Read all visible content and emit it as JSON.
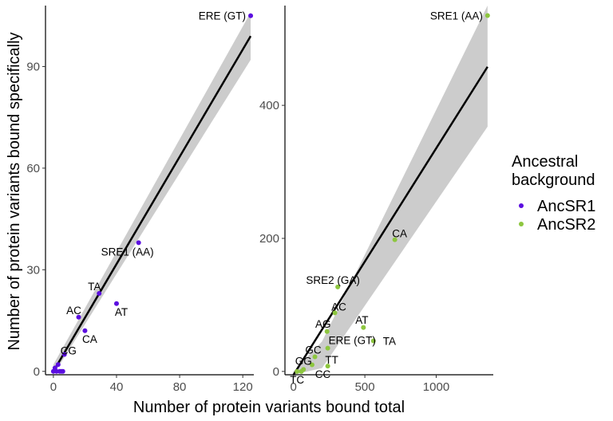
{
  "figure": {
    "x_axis_title": "Number of protein variants bound total",
    "y_axis_title": "Number of protein variants bound specifically"
  },
  "legend": {
    "title_line1": "Ancestral",
    "title_line2": "background",
    "items": [
      {
        "label": "AncSR1",
        "color": "#5b0ee0"
      },
      {
        "label": "AncSR2",
        "color": "#8dc63f"
      }
    ]
  },
  "chart_data": [
    {
      "type": "scatter",
      "series": "AncSR1",
      "color": "#5b0ee0",
      "xlim": [
        -5,
        127
      ],
      "ylim": [
        -1,
        108
      ],
      "xticks": [
        0,
        40,
        80,
        120
      ],
      "yticks": [
        0,
        30,
        60,
        90
      ],
      "grid": false,
      "points": [
        {
          "x": 125,
          "y": 105,
          "label": "ERE (GT)"
        },
        {
          "x": 54,
          "y": 38,
          "label": "SRE1 (AA)"
        },
        {
          "x": 40,
          "y": 20,
          "label": "AT"
        },
        {
          "x": 29,
          "y": 23,
          "label": "TA"
        },
        {
          "x": 16,
          "y": 16,
          "label": "AC"
        },
        {
          "x": 20,
          "y": 12,
          "label": "CA"
        },
        {
          "x": 7,
          "y": 5,
          "label": "CG"
        },
        {
          "x": 3,
          "y": 2,
          "label": ""
        },
        {
          "x": 1,
          "y": 1,
          "label": ""
        },
        {
          "x": 0,
          "y": 0,
          "label": ""
        },
        {
          "x": 2,
          "y": 0,
          "label": ""
        },
        {
          "x": 4,
          "y": 0,
          "label": ""
        },
        {
          "x": 5,
          "y": 0,
          "label": ""
        },
        {
          "x": 6,
          "y": 0,
          "label": ""
        }
      ],
      "fit": {
        "x": [
          0,
          125
        ],
        "y": [
          0,
          99
        ]
      },
      "ci": {
        "x": [
          0,
          125
        ],
        "lower": [
          -2,
          92
        ],
        "upper": [
          2,
          106
        ]
      }
    },
    {
      "type": "scatter",
      "series": "AncSR2",
      "color": "#8dc63f",
      "xlim": [
        -60,
        1400
      ],
      "ylim": [
        -5,
        550
      ],
      "xticks": [
        0,
        500,
        1000
      ],
      "yticks": [
        0,
        200,
        400
      ],
      "grid": false,
      "points": [
        {
          "x": 1360,
          "y": 535,
          "label": "SRE1 (AA)"
        },
        {
          "x": 710,
          "y": 198,
          "label": "CA"
        },
        {
          "x": 310,
          "y": 127,
          "label": "SRE2 (GA)"
        },
        {
          "x": 290,
          "y": 88,
          "label": "AC"
        },
        {
          "x": 235,
          "y": 60,
          "label": "AG"
        },
        {
          "x": 490,
          "y": 66,
          "label": "AT"
        },
        {
          "x": 560,
          "y": 46,
          "label": "TA"
        },
        {
          "x": 240,
          "y": 35,
          "label": "ERE (GT)"
        },
        {
          "x": 150,
          "y": 22,
          "label": "GC"
        },
        {
          "x": 240,
          "y": 8,
          "label": "TT"
        },
        {
          "x": 130,
          "y": 10,
          "label": ""
        },
        {
          "x": 70,
          "y": 3,
          "label": "GG"
        },
        {
          "x": 25,
          "y": 0,
          "label": "TC"
        },
        {
          "x": 55,
          "y": 0,
          "label": "CC"
        }
      ],
      "fit": {
        "x": [
          0,
          1360
        ],
        "y": [
          -14,
          458
        ]
      },
      "ci": {
        "x": [
          0,
          200,
          1360
        ],
        "lower": [
          -28,
          5,
          368
        ],
        "upper": [
          0,
          45,
          550
        ]
      }
    }
  ]
}
